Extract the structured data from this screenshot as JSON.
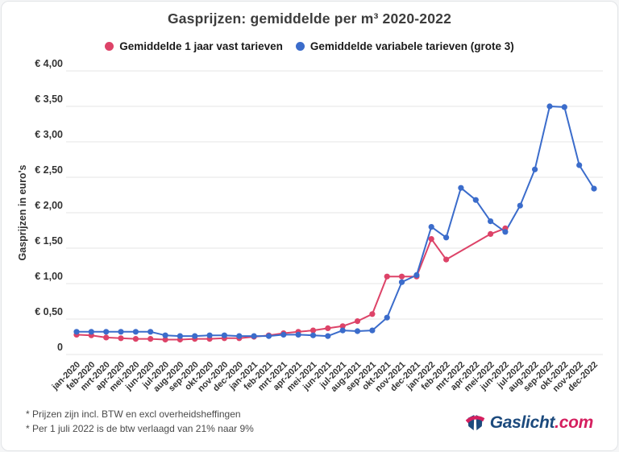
{
  "chart_data": {
    "type": "line",
    "title": "Gasprijzen: gemiddelde per m³ 2020-2022",
    "xlabel": "",
    "ylabel": "Gasprijzen in euro's",
    "ylim": [
      0,
      4
    ],
    "grid": "horizontal",
    "legend_position": "top",
    "marker": "circle",
    "y_ticks": [
      {
        "value": 4.0,
        "label": "€ 4,00"
      },
      {
        "value": 3.5,
        "label": "€ 3,50"
      },
      {
        "value": 3.0,
        "label": "€ 3,00"
      },
      {
        "value": 2.5,
        "label": "€ 2,50"
      },
      {
        "value": 2.0,
        "label": "€ 2,00"
      },
      {
        "value": 1.5,
        "label": "€ 1,50"
      },
      {
        "value": 1.0,
        "label": "€ 1,00"
      },
      {
        "value": 0.5,
        "label": "€ 0,50"
      },
      {
        "value": 0.0,
        "label": "0"
      }
    ],
    "categories": [
      "jan-2020",
      "feb-2020",
      "mrt-2020",
      "apr-2020",
      "mei-2020",
      "jun-2020",
      "jul-2020",
      "aug-2020",
      "sep-2020",
      "okt-2020",
      "nov-2020",
      "dec-2020",
      "jan-2021",
      "feb-2021",
      "mrt-2021",
      "apr-2021",
      "mei-2021",
      "jun-2021",
      "jul-2021",
      "aug-2021",
      "sep-2021",
      "okt-2021",
      "nov-2021",
      "dec-2021",
      "jan-2022",
      "feb-2022",
      "mrt-2022",
      "apr-2022",
      "mei-2022",
      "jun-2022",
      "jul-2022",
      "aug-2022",
      "sep-2022",
      "okt-2022",
      "nov-2022",
      "dec-2022"
    ],
    "series": [
      {
        "name": "Gemiddelde 1 jaar vast tarieven",
        "color": "#dd4368",
        "values": [
          0.28,
          0.27,
          0.24,
          0.23,
          0.22,
          0.22,
          0.21,
          0.21,
          0.22,
          0.22,
          0.23,
          0.23,
          0.25,
          0.27,
          0.3,
          0.32,
          0.34,
          0.37,
          0.4,
          0.47,
          0.57,
          1.1,
          1.1,
          1.1,
          1.63,
          1.34,
          null,
          null,
          1.7,
          1.78,
          null,
          null,
          null,
          null,
          null,
          null
        ]
      },
      {
        "name": "Gemiddelde variabele tarieven (grote 3)",
        "color": "#3b6ccb",
        "values": [
          0.32,
          0.32,
          0.32,
          0.32,
          0.32,
          0.32,
          0.27,
          0.26,
          0.26,
          0.27,
          0.27,
          0.26,
          0.26,
          0.26,
          0.28,
          0.28,
          0.27,
          0.26,
          0.34,
          0.33,
          0.34,
          0.52,
          1.02,
          1.12,
          1.8,
          1.65,
          2.35,
          2.18,
          1.88,
          1.73,
          2.1,
          2.61,
          3.5,
          3.49,
          2.67,
          2.34
        ]
      }
    ]
  },
  "footer": {
    "notes": [
      "* Prijzen zijn incl. BTW en excl overheidsheffingen",
      "* Per 1 juli 2022 is de btw verlaagd van 21% naar 9%"
    ]
  },
  "logo": {
    "brand": "Gaslicht",
    "tld": ".com",
    "brand_color": "#1c4a7d",
    "tld_color": "#d51f5f"
  }
}
